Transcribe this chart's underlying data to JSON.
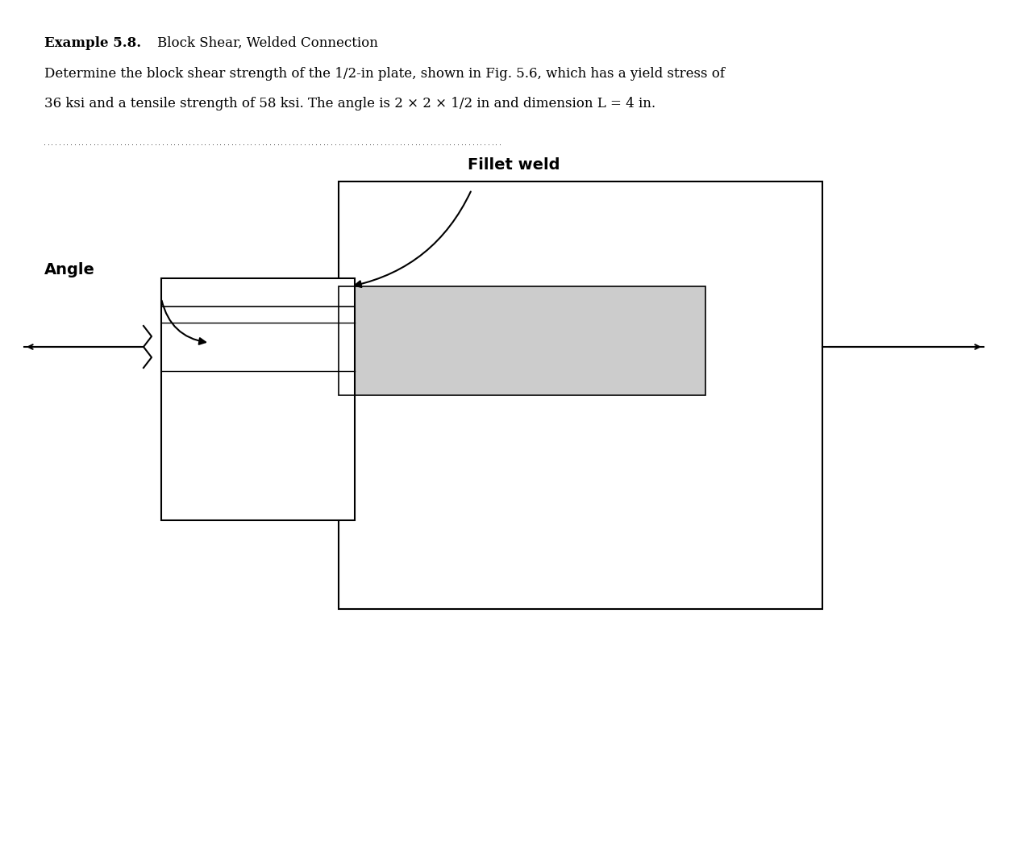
{
  "title_bold": "Example 5.8.",
  "title_normal": "Block Shear, Welded Connection",
  "body_line1": "Determine the block shear strength of the 1/2-in plate, shown in Fig. 5.6, which has a yield stress of",
  "body_line2": "36 ksi and a tensile strength of 58 ksi. The angle is 2 × 2 × 1/2 in and dimension L = 4 in.",
  "background_color": "#ffffff",
  "plate_color": "#cccccc",
  "border_color": "#000000",
  "label_fillet": "Fillet weld",
  "label_angle": "Angle",
  "fig_width": 12.8,
  "fig_height": 10.55,
  "dpi": 100
}
